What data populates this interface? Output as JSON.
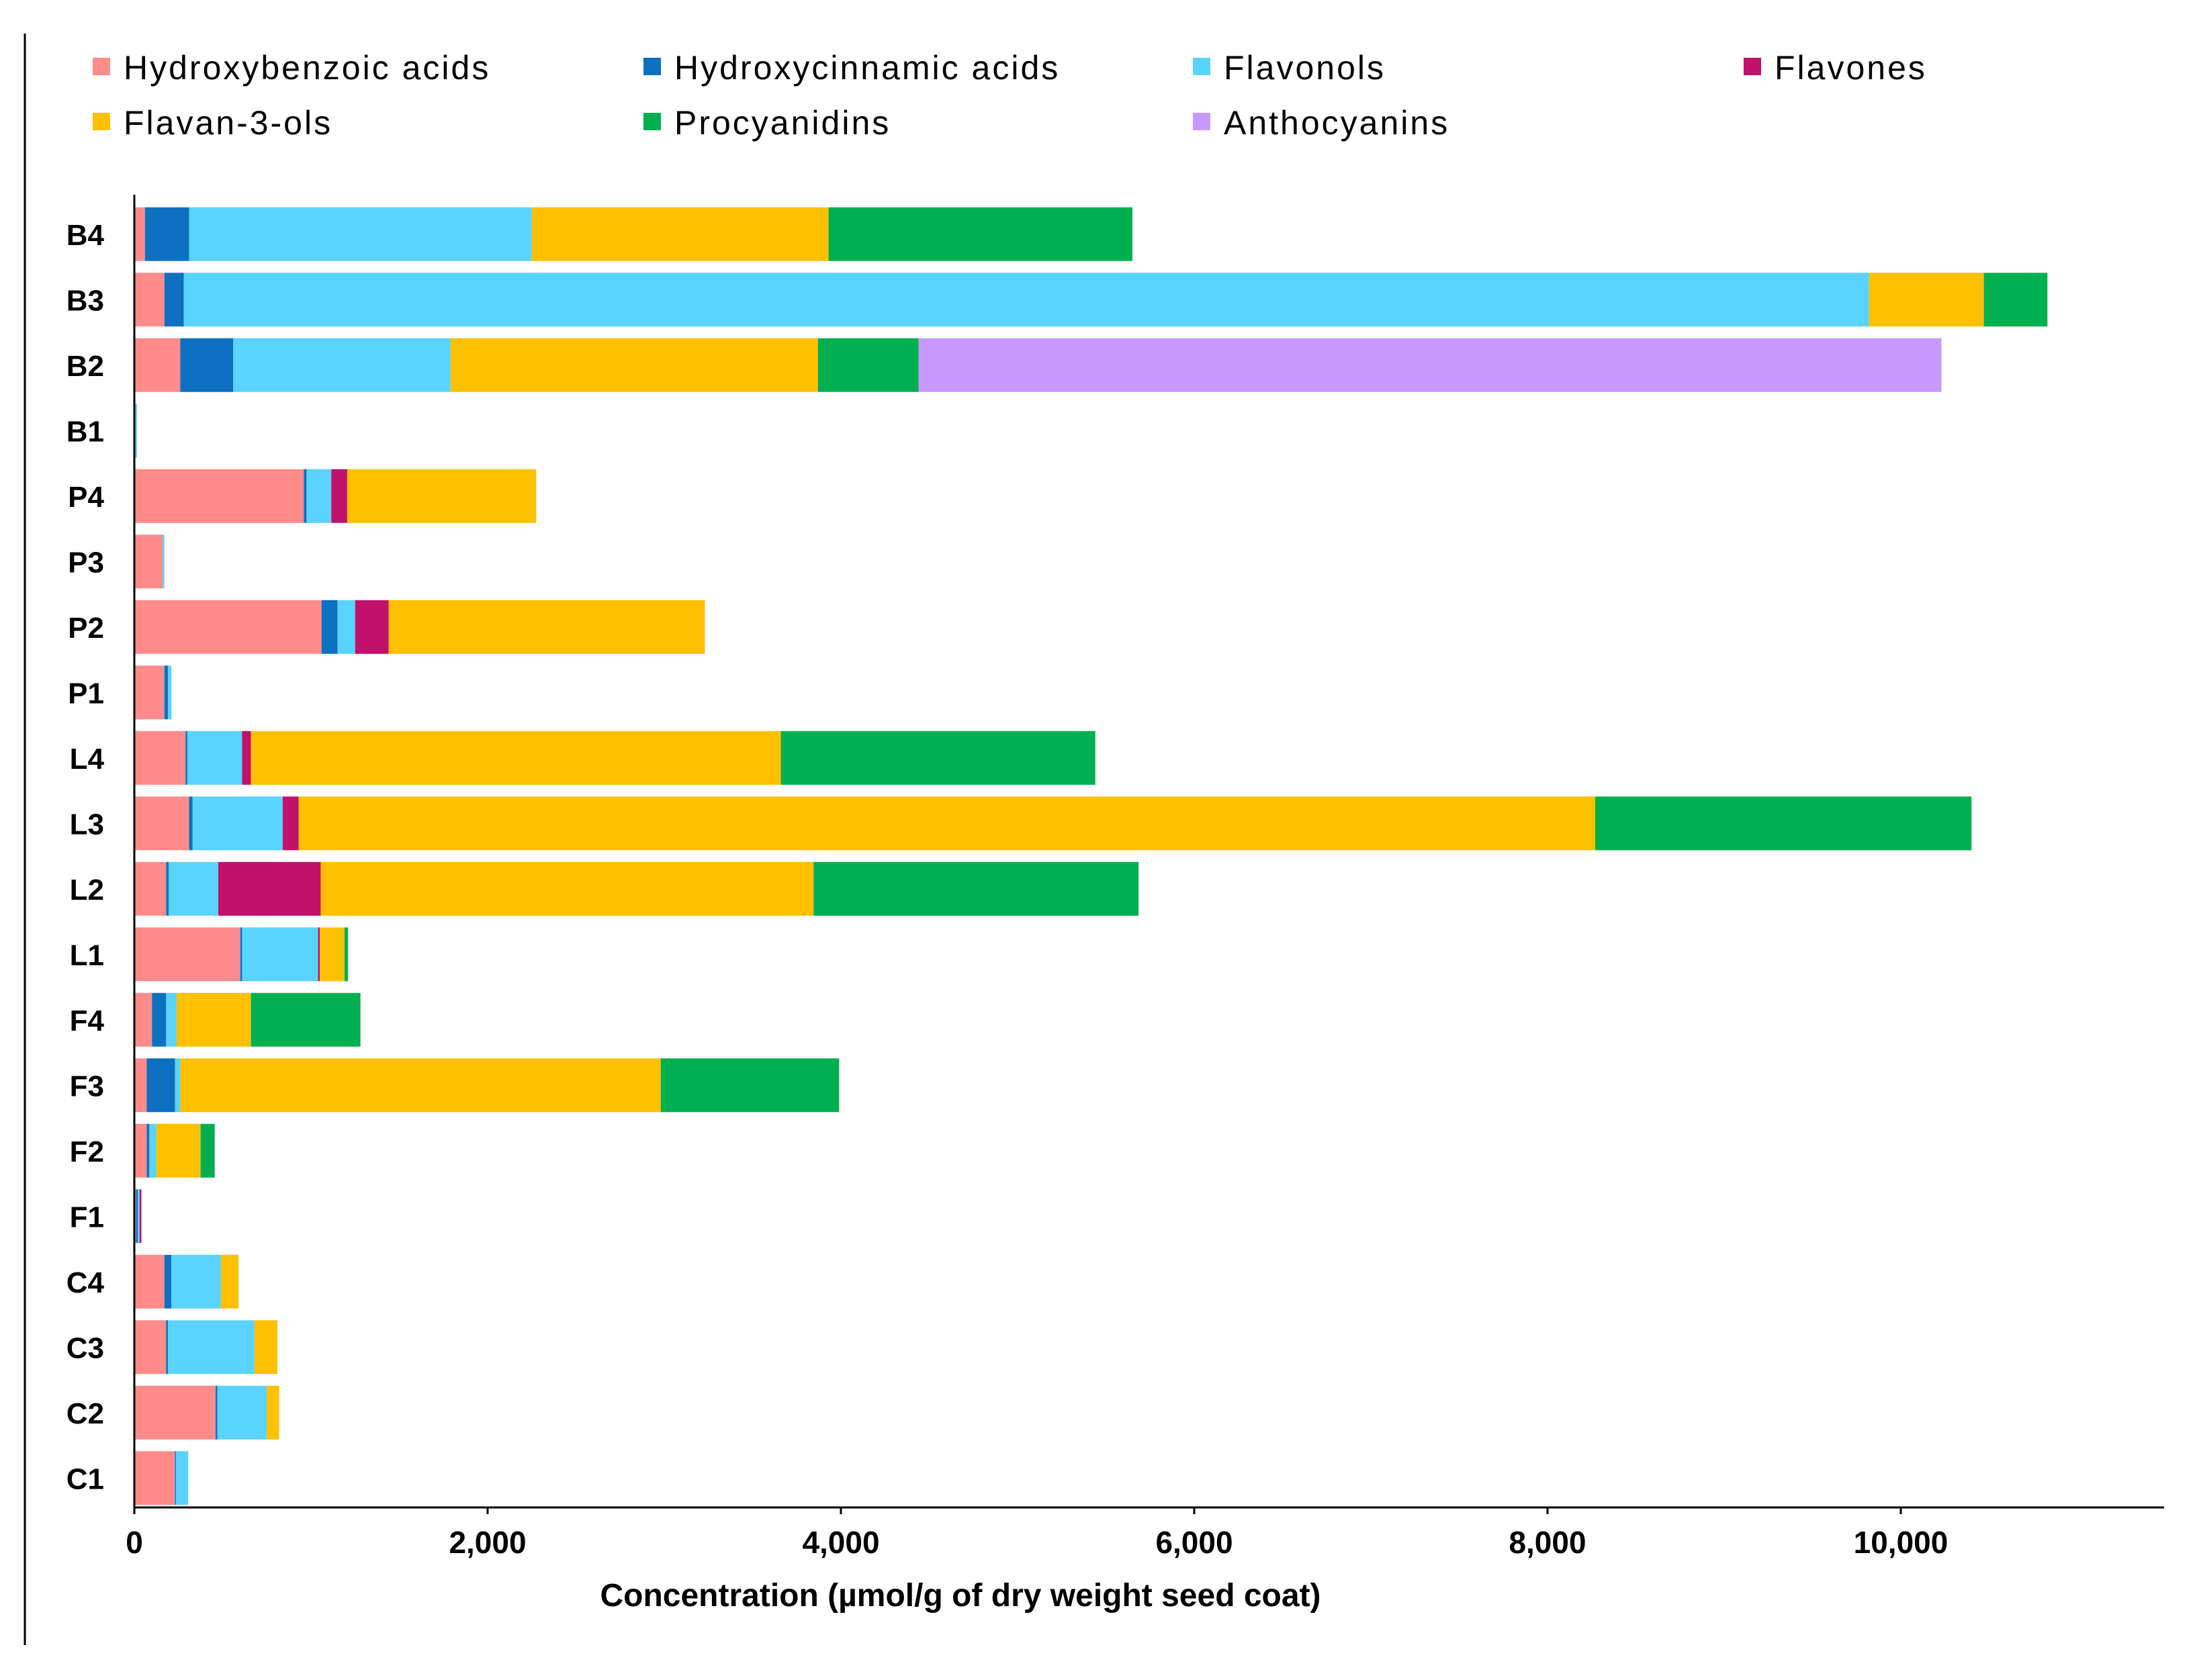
{
  "chart_data": {
    "type": "bar",
    "orientation": "horizontal",
    "stacked": true,
    "title": "",
    "xlabel": "Concentration (µmol/g of dry weight seed coat)",
    "ylabel": "",
    "xlim": [
      0,
      11000
    ],
    "xticks": [
      0,
      2000,
      4000,
      6000,
      8000,
      10000
    ],
    "xtick_labels": [
      "0",
      "2,000",
      "4,000",
      "6,000",
      "8,000",
      "10,000"
    ],
    "categories": [
      "B4",
      "B3",
      "B2",
      "B1",
      "P4",
      "P3",
      "P2",
      "P1",
      "L4",
      "L3",
      "L2",
      "L1",
      "F4",
      "F3",
      "F2",
      "F1",
      "C4",
      "C3",
      "C2",
      "C1"
    ],
    "series": [
      {
        "name": "Hydroxybenzoic acids",
        "color": "#FF8B8B",
        "values": [
          60,
          170,
          260,
          5,
          960,
          160,
          1060,
          170,
          290,
          310,
          180,
          600,
          100,
          70,
          70,
          10,
          170,
          180,
          460,
          230
        ]
      },
      {
        "name": "Hydroxycinnamic acids",
        "color": "#0D70C0",
        "values": [
          250,
          110,
          300,
          0,
          15,
          0,
          90,
          20,
          10,
          20,
          15,
          10,
          80,
          160,
          15,
          10,
          40,
          10,
          10,
          5
        ]
      },
      {
        "name": "Flavonols",
        "color": "#5BD3FF",
        "values": [
          1940,
          9540,
          1230,
          10,
          140,
          10,
          100,
          20,
          310,
          510,
          280,
          430,
          60,
          30,
          40,
          10,
          280,
          490,
          280,
          70
        ]
      },
      {
        "name": "Flavones",
        "color": "#C0116B",
        "values": [
          0,
          0,
          0,
          0,
          90,
          0,
          190,
          0,
          50,
          90,
          580,
          10,
          0,
          0,
          0,
          10,
          0,
          0,
          0,
          0
        ]
      },
      {
        "name": "Flavan-3-ols",
        "color": "#FFC000",
        "values": [
          1680,
          650,
          2080,
          0,
          1070,
          0,
          1790,
          0,
          3000,
          7340,
          2790,
          140,
          420,
          2720,
          250,
          0,
          100,
          130,
          70,
          0
        ]
      },
      {
        "name": "Procyanidins",
        "color": "#00B050",
        "values": [
          1720,
          360,
          570,
          0,
          0,
          0,
          0,
          0,
          1780,
          2130,
          1840,
          20,
          620,
          1010,
          80,
          0,
          0,
          0,
          0,
          0
        ]
      },
      {
        "name": "Anthocyanins",
        "color": "#C899FF",
        "values": [
          0,
          0,
          5790,
          0,
          0,
          0,
          0,
          0,
          0,
          0,
          0,
          0,
          0,
          0,
          0,
          0,
          0,
          0,
          0,
          0
        ]
      }
    ],
    "legend_position": "top",
    "grid": false
  }
}
